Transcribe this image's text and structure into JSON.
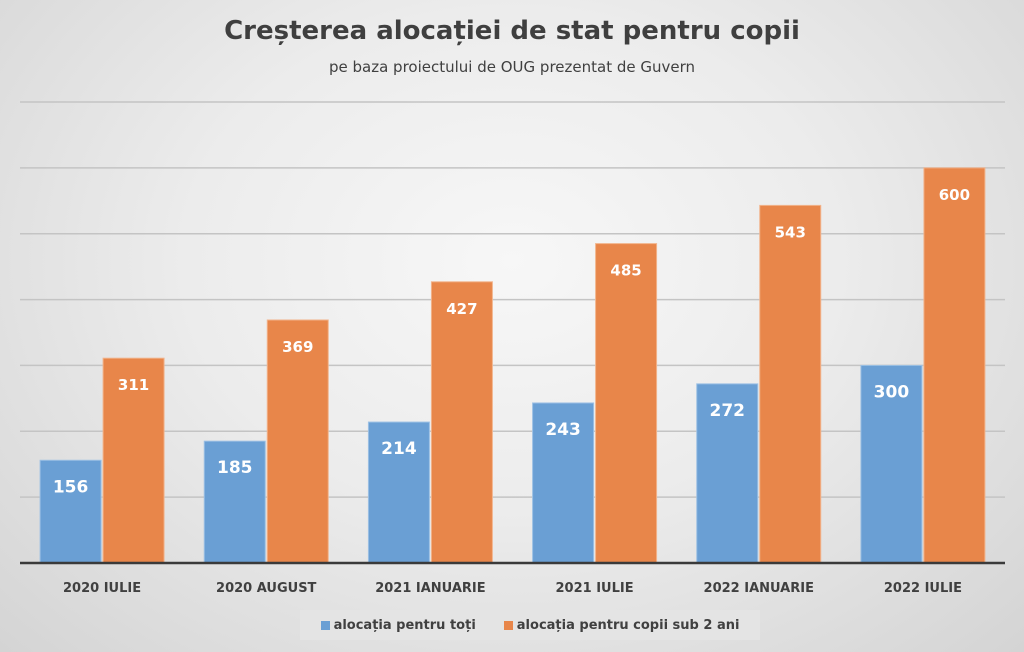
{
  "chart_data": {
    "type": "bar",
    "title": "Creșterea alocației de stat pentru copii",
    "subtitle": "pe baza proiectului de OUG prezentat de Guvern",
    "xlabel": "",
    "ylabel": "",
    "ylim": [
      0,
      700
    ],
    "grid": true,
    "legend_position": "bottom",
    "categories": [
      "2020 IULIE",
      "2020 AUGUST",
      "2021 IANUARIE",
      "2021 IULIE",
      "2022 IANUARIE",
      "2022 IULIE"
    ],
    "series": [
      {
        "name": "alocația pentru toți",
        "color": "#6a9fd4",
        "values": [
          156,
          185,
          214,
          243,
          272,
          300
        ]
      },
      {
        "name": "alocația pentru copii sub 2 ani",
        "color": "#e8864a",
        "values": [
          311,
          369,
          427,
          485,
          543,
          600
        ]
      }
    ]
  }
}
